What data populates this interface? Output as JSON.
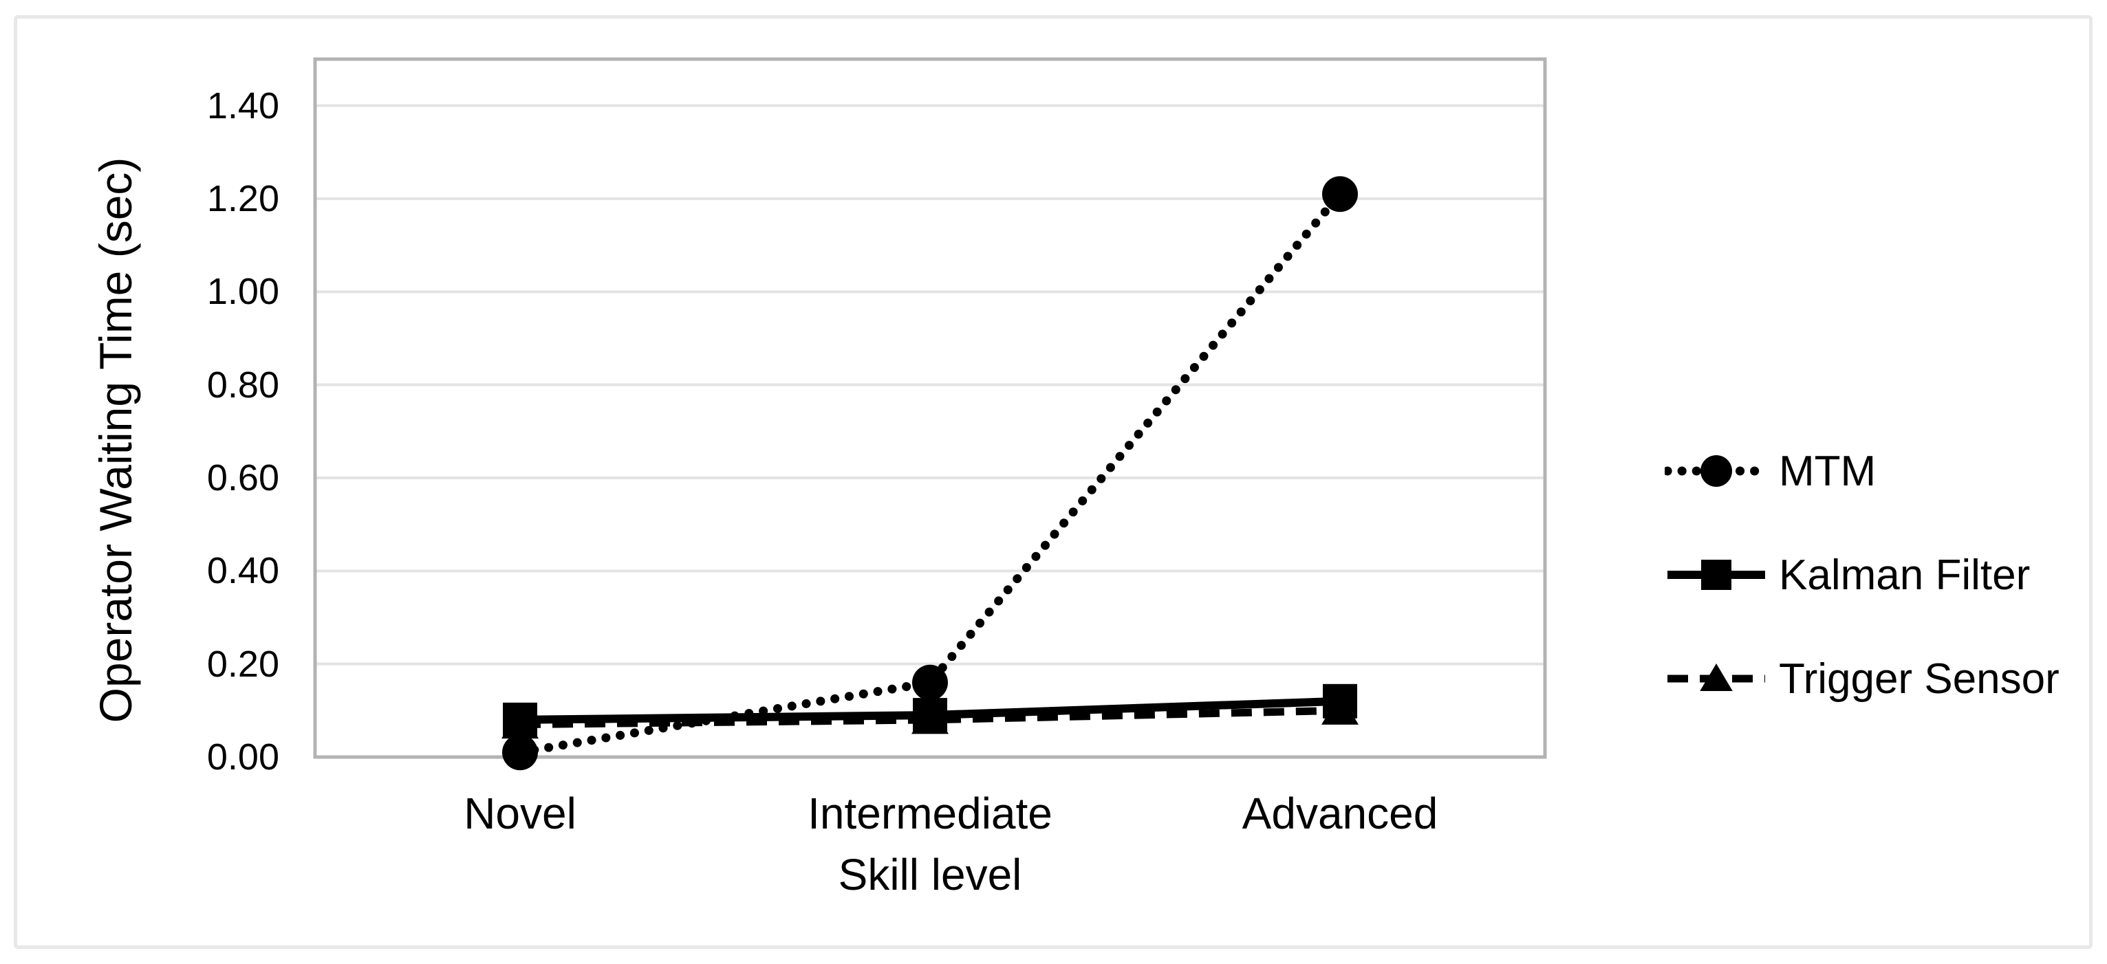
{
  "figure": {
    "background": "#ffffff",
    "frame_color": "#e8e8e8"
  },
  "chart_data": {
    "type": "line",
    "title": "",
    "xlabel": "Skill level",
    "ylabel": "Operator Waiting Time (sec)",
    "categories": [
      "Novel",
      "Intermediate",
      "Advanced"
    ],
    "series": [
      {
        "name": "MTM",
        "marker": "circle",
        "line_style": "dotted",
        "color": "#000000",
        "values": [
          0.01,
          0.16,
          1.21
        ]
      },
      {
        "name": "Kalman Filter",
        "marker": "square",
        "line_style": "solid",
        "color": "#000000",
        "values": [
          0.08,
          0.09,
          0.12
        ]
      },
      {
        "name": "Trigger Sensor",
        "marker": "triangle",
        "line_style": "dashed",
        "color": "#000000",
        "values": [
          0.07,
          0.08,
          0.1
        ]
      }
    ],
    "ylim": [
      0,
      1.5
    ],
    "yticks": [
      0.0,
      0.2,
      0.4,
      0.6,
      0.8,
      1.0,
      1.2,
      1.4
    ],
    "ytick_labels": [
      "0.00",
      "0.20",
      "0.40",
      "0.60",
      "0.80",
      "1.00",
      "1.20",
      "1.40"
    ],
    "grid": true,
    "legend_position": "right",
    "colors": {
      "gridline": "#e3e3e3",
      "axis_border": "#b3b3b3",
      "text": "#000000"
    }
  }
}
